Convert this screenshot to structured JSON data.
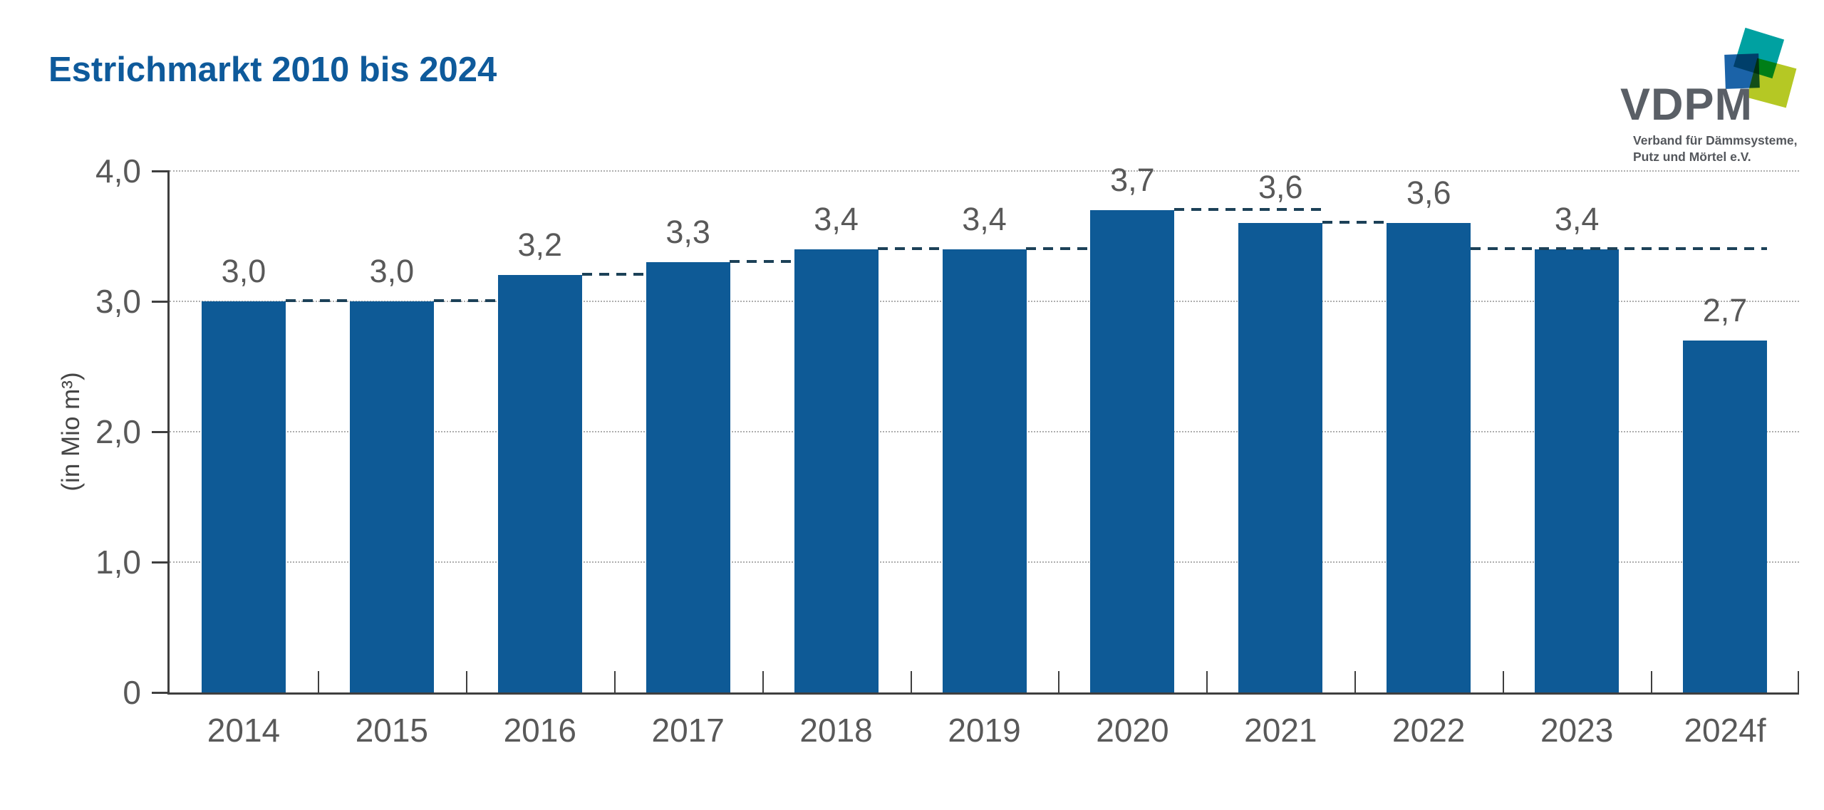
{
  "page": {
    "title": "Estrichmarkt 2010 bis 2024"
  },
  "logo": {
    "name": "VDPM",
    "tagline_line1": "Verband für Dämmsysteme,",
    "tagline_line2": "Putz und Mörtel e.V.",
    "colors": {
      "blue": "#1b63a8",
      "teal": "#00a1a1",
      "lime": "#b5c824",
      "text": "#5a5f66"
    }
  },
  "chart_data": {
    "type": "bar",
    "title": "Estrichmarkt 2010 bis 2024",
    "ylabel": "(in Mio m³)",
    "categories": [
      "2014",
      "2015",
      "2016",
      "2017",
      "2018",
      "2019",
      "2020",
      "2021",
      "2022",
      "2023",
      "2024f"
    ],
    "values": [
      3.0,
      3.0,
      3.2,
      3.3,
      3.4,
      3.4,
      3.7,
      3.6,
      3.6,
      3.4,
      2.7
    ],
    "value_labels": [
      "3,0",
      "3,0",
      "3,2",
      "3,3",
      "3,4",
      "3,4",
      "3,7",
      "3,6",
      "3,6",
      "3,4",
      "2,7"
    ],
    "label_levels": [
      3.0,
      3.0,
      3.2,
      3.3,
      3.4,
      3.4,
      3.7,
      3.7,
      3.6,
      3.4,
      2.7
    ],
    "ylim": [
      0,
      4
    ],
    "yticks": [
      {
        "value": 0,
        "label": "0"
      },
      {
        "value": 1,
        "label": "1,0"
      },
      {
        "value": 2,
        "label": "2,0"
      },
      {
        "value": 3,
        "label": "3,0"
      },
      {
        "value": 4,
        "label": "4,0"
      }
    ],
    "grid_levels": [
      1,
      2,
      3,
      4
    ],
    "grid": "dotted-horizontal",
    "legend": "none",
    "bar_color": "#0e5a96",
    "label_color": "#595959",
    "axis_color": "#3f3f3f",
    "grid_color": "#aeaeae",
    "dashed_line_color": "#1c4158",
    "dashed_segments": [
      {
        "level": 3.0,
        "from": 0.7825,
        "to": 1.2175
      },
      {
        "level": 3.0,
        "from": 1.7825,
        "to": 2.2175
      },
      {
        "level": 3.2,
        "from": 2.7825,
        "to": 3.2175
      },
      {
        "level": 3.3,
        "from": 3.7825,
        "to": 4.2175
      },
      {
        "level": 3.4,
        "from": 4.7825,
        "to": 5.2175
      },
      {
        "level": 3.4,
        "from": 5.7825,
        "to": 6.2175
      },
      {
        "level": 3.7,
        "from": 6.7825,
        "to": 7.7825
      },
      {
        "level": 3.6,
        "from": 7.7825,
        "to": 8.2175
      },
      {
        "level": 3.4,
        "from": 8.7825,
        "to": 10.7825
      }
    ]
  }
}
